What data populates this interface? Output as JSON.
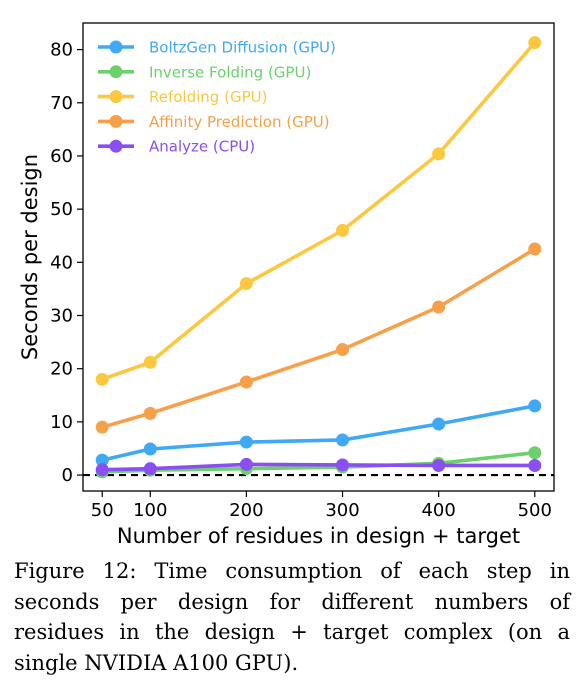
{
  "chart_data": {
    "type": "line",
    "xlabel": "Number of residues in design + target",
    "ylabel": "Seconds per design",
    "x": [
      50,
      100,
      200,
      300,
      400,
      500
    ],
    "xticks": [
      50,
      100,
      200,
      300,
      400,
      500
    ],
    "yticks": [
      0,
      10,
      20,
      30,
      40,
      50,
      60,
      70,
      80
    ],
    "xlim": [
      30,
      520
    ],
    "ylim": [
      -3,
      85
    ],
    "reference_line": {
      "y": 0,
      "style": "dashed",
      "color": "#000000"
    },
    "legend_position": "top-left",
    "series": [
      {
        "name": "BoltzGen Diffusion (GPU)",
        "color": "#3fa9f5",
        "values": [
          2.8,
          4.9,
          6.2,
          6.6,
          9.6,
          13.0
        ]
      },
      {
        "name": "Inverse Folding (GPU)",
        "color": "#6cd16c",
        "values": [
          0.6,
          0.9,
          1.2,
          1.5,
          2.2,
          4.2
        ]
      },
      {
        "name": "Refolding (GPU)",
        "color": "#fbc840",
        "values": [
          18.0,
          21.2,
          36.0,
          46.0,
          60.4,
          81.3
        ]
      },
      {
        "name": "Affinity Prediction (GPU)",
        "color": "#f7a04a",
        "values": [
          9.0,
          11.6,
          17.5,
          23.6,
          31.6,
          42.5
        ]
      },
      {
        "name": "Analyze  (CPU)",
        "color": "#8a4ff0",
        "values": [
          1.0,
          1.2,
          2.0,
          1.9,
          1.8,
          1.8
        ]
      }
    ]
  },
  "caption": "Figure 12: Time consumption of each step in seconds per design for different numbers of residues in the design + target complex (on a single NVIDIA A100 GPU)."
}
